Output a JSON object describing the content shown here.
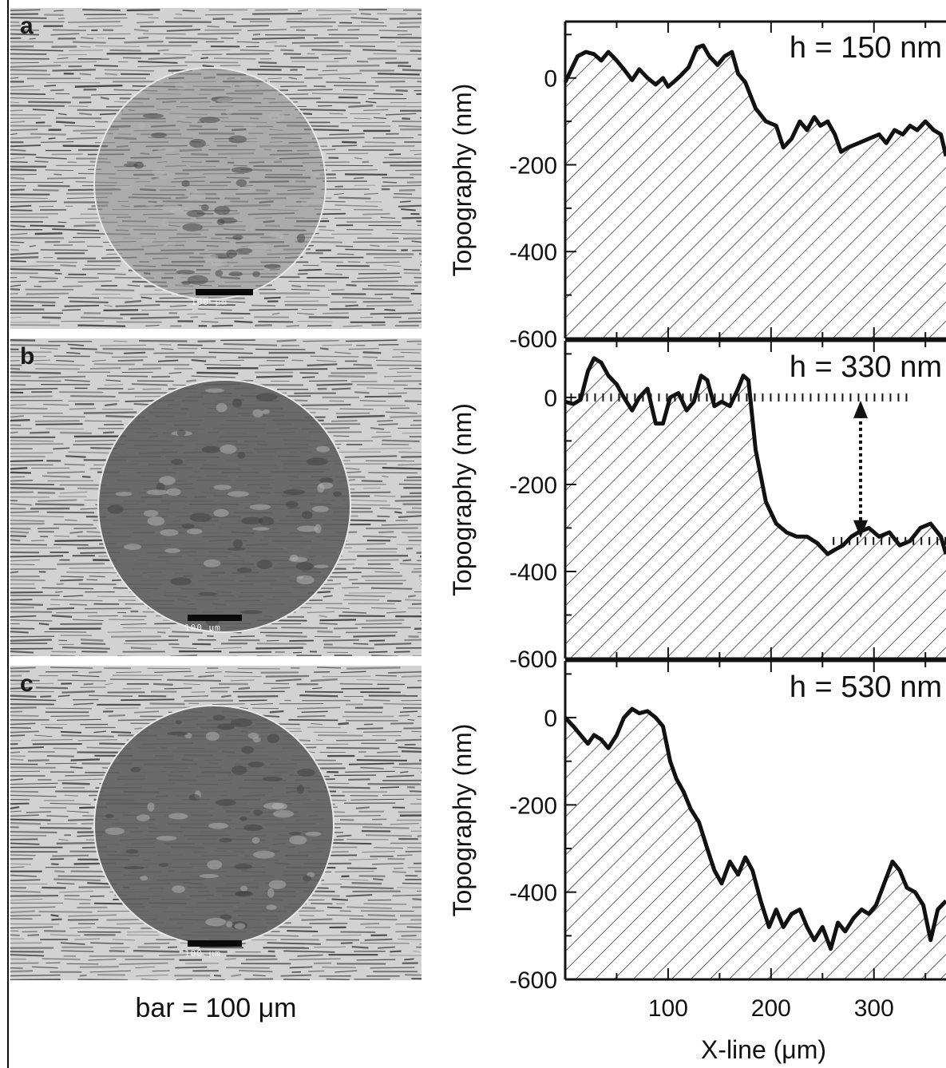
{
  "figure": {
    "left_caption": "bar = 100 μm",
    "scale_bar_text": "100 μm",
    "colors": {
      "ink": "#111111",
      "sem_light": "#d2d2d2",
      "sem_dark": "#5e5e5e"
    }
  },
  "panels": [
    {
      "letter": "a"
    },
    {
      "letter": "b"
    },
    {
      "letter": "c"
    }
  ],
  "chart_data": [
    {
      "type": "area",
      "annotation": "h = 150 nm",
      "ylabel": "Topography (nm)",
      "xlabel": "",
      "xlim": [
        0,
        370
      ],
      "ylim": [
        -600,
        130
      ],
      "yticks": [
        0,
        -200,
        -400,
        -600
      ],
      "xticks": [],
      "fill": "diagonal-hatch",
      "x": [
        0,
        5,
        12,
        20,
        28,
        35,
        42,
        50,
        57,
        65,
        72,
        80,
        88,
        95,
        100,
        105,
        112,
        120,
        128,
        134,
        140,
        148,
        155,
        162,
        168,
        175,
        185,
        195,
        205,
        212,
        220,
        228,
        235,
        242,
        248,
        255,
        262,
        268,
        275,
        285,
        295,
        305,
        312,
        320,
        328,
        335,
        342,
        350,
        358,
        365,
        370
      ],
      "y": [
        -10,
        15,
        50,
        60,
        55,
        40,
        60,
        40,
        20,
        -5,
        20,
        0,
        -15,
        0,
        -20,
        -10,
        5,
        25,
        70,
        75,
        50,
        30,
        50,
        60,
        10,
        -10,
        -70,
        -100,
        -110,
        -160,
        -140,
        -100,
        -120,
        -90,
        -110,
        -100,
        -130,
        -170,
        -160,
        -150,
        -140,
        -130,
        -150,
        -120,
        -130,
        -110,
        -120,
        -100,
        -120,
        -130,
        -180
      ]
    },
    {
      "type": "area",
      "annotation": "h = 330 nm",
      "ylabel": "Topography (nm)",
      "xlabel": "",
      "xlim": [
        0,
        370
      ],
      "ylim": [
        -600,
        130
      ],
      "yticks": [
        0,
        -200,
        -400,
        -600
      ],
      "xticks": [
        100,
        200,
        300
      ],
      "fill": "diagonal-hatch",
      "x": [
        0,
        8,
        15,
        22,
        28,
        35,
        42,
        50,
        57,
        65,
        72,
        80,
        88,
        95,
        102,
        110,
        118,
        125,
        132,
        138,
        145,
        152,
        160,
        168,
        173,
        178,
        185,
        195,
        205,
        215,
        225,
        235,
        245,
        255,
        262,
        270,
        278,
        285,
        295,
        305,
        315,
        325,
        335,
        345,
        355,
        365,
        370
      ],
      "y": [
        -10,
        -15,
        -5,
        60,
        90,
        80,
        50,
        30,
        0,
        -30,
        0,
        20,
        -60,
        -60,
        0,
        10,
        -30,
        -10,
        50,
        40,
        -20,
        -10,
        -20,
        20,
        50,
        40,
        -120,
        -240,
        -290,
        -310,
        -320,
        -320,
        -335,
        -360,
        -350,
        -340,
        -320,
        -310,
        -300,
        -320,
        -310,
        -340,
        -330,
        -300,
        -290,
        -320,
        -360
      ],
      "reference_levels": [
        0,
        -330
      ],
      "arrow_x": 287
    },
    {
      "type": "area",
      "annotation": "h = 530 nm",
      "ylabel": "Topography (nm)",
      "xlabel": "X-line (μm)",
      "xlim": [
        0,
        370
      ],
      "ylim": [
        -600,
        130
      ],
      "yticks": [
        0,
        -200,
        -400,
        -600
      ],
      "xticks": [
        100,
        200,
        300
      ],
      "fill": "diagonal-hatch",
      "x": [
        0,
        8,
        15,
        22,
        28,
        35,
        42,
        50,
        57,
        65,
        72,
        80,
        88,
        95,
        102,
        108,
        115,
        122,
        130,
        138,
        145,
        152,
        160,
        168,
        175,
        182,
        190,
        198,
        205,
        212,
        220,
        228,
        235,
        242,
        250,
        258,
        265,
        272,
        280,
        288,
        295,
        302,
        310,
        318,
        325,
        332,
        340,
        348,
        355,
        362,
        370
      ],
      "y": [
        0,
        -20,
        -40,
        -60,
        -40,
        -50,
        -70,
        -40,
        0,
        20,
        10,
        15,
        0,
        -20,
        -100,
        -140,
        -170,
        -210,
        -240,
        -300,
        -350,
        -380,
        -330,
        -360,
        -320,
        -350,
        -420,
        -480,
        -440,
        -480,
        -450,
        -440,
        -480,
        -510,
        -480,
        -530,
        -470,
        -490,
        -460,
        -440,
        -450,
        -430,
        -380,
        -330,
        -350,
        -390,
        -400,
        -430,
        -510,
        -440,
        -420
      ]
    }
  ]
}
